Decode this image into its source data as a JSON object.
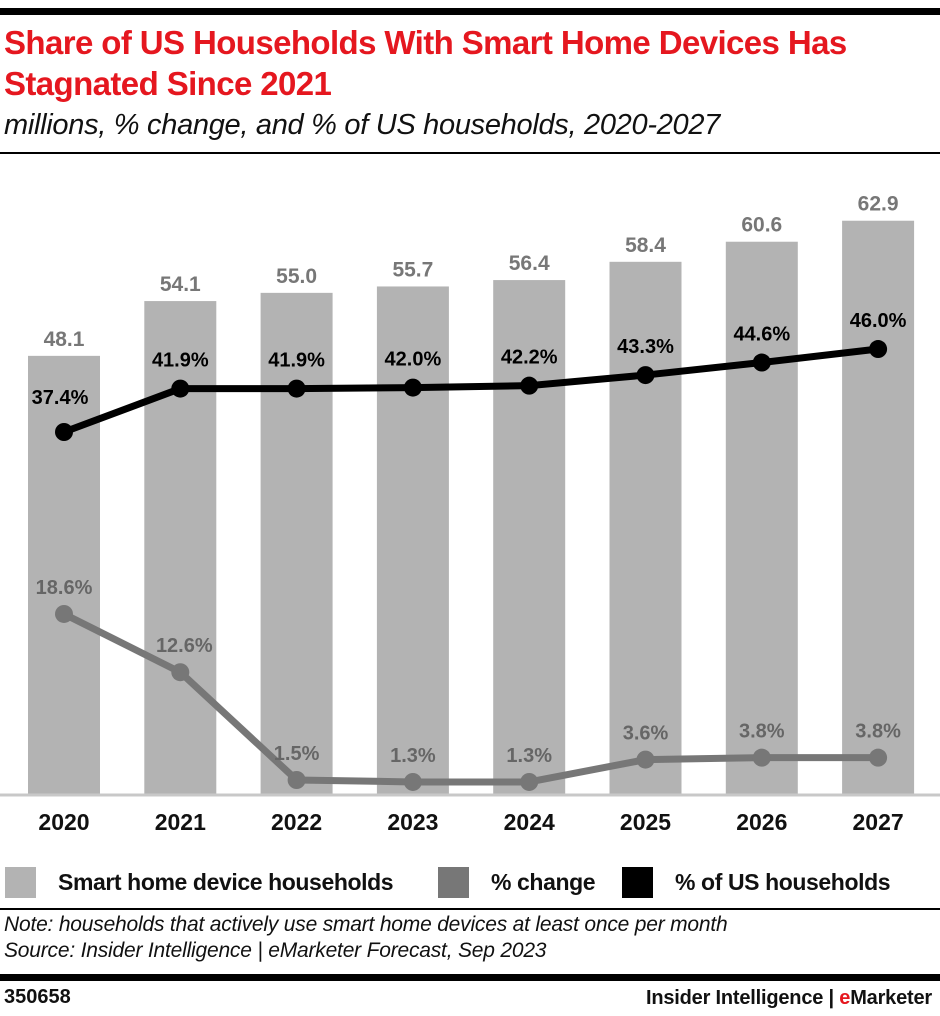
{
  "header": {
    "title": "Share of US Households With Smart Home Devices Has Stagnated Since 2021",
    "subtitle": "millions, % change, and % of US households, 2020-2027"
  },
  "chart_data": {
    "type": "bar",
    "title": "Share of US Households With Smart Home Devices Has Stagnated Since 2021",
    "subtitle": "millions, % change, and % of US households, 2020-2027",
    "xlabel": "",
    "ylabel": "",
    "grid": false,
    "legend_position": "bottom",
    "categories": [
      "2020",
      "2021",
      "2022",
      "2023",
      "2024",
      "2025",
      "2026",
      "2027"
    ],
    "series": [
      {
        "name": "Smart home device households",
        "type": "bar",
        "color": "#b3b3b3",
        "label_color": "#777777",
        "values": [
          48.1,
          54.1,
          55.0,
          55.7,
          56.4,
          58.4,
          60.6,
          62.9
        ],
        "labels": [
          "48.1",
          "54.1",
          "55.0",
          "55.7",
          "56.4",
          "58.4",
          "60.6",
          "62.9"
        ]
      },
      {
        "name": "% change",
        "type": "line",
        "color": "#777777",
        "label_color": "#666666",
        "values": [
          18.6,
          12.6,
          1.5,
          1.3,
          1.3,
          3.6,
          3.8,
          3.8
        ],
        "labels": [
          "18.6%",
          "12.6%",
          "1.5%",
          "1.3%",
          "1.3%",
          "3.6%",
          "3.8%",
          "3.8%"
        ]
      },
      {
        "name": "% of US households",
        "type": "line",
        "color": "#000000",
        "label_color": "#000000",
        "values": [
          37.4,
          41.9,
          41.9,
          42.0,
          42.2,
          43.3,
          44.6,
          46.0
        ],
        "labels": [
          "37.4%",
          "41.9%",
          "41.9%",
          "42.0%",
          "42.2%",
          "43.3%",
          "44.6%",
          "46.0%"
        ]
      }
    ]
  },
  "legend": [
    {
      "label": "Smart home device households",
      "color": "#b3b3b3"
    },
    {
      "label": "% change",
      "color": "#777777"
    },
    {
      "label": "% of US households",
      "color": "#000000"
    }
  ],
  "footer": {
    "note": "Note: households that actively use smart home devices at least once per month",
    "source": "Source: Insider Intelligence | eMarketer Forecast, Sep 2023",
    "chart_id": "350658",
    "brand_prefix": "Insider Intelligence | ",
    "brand_e": "e",
    "brand_suffix": "Marketer"
  },
  "colors": {
    "title_red": "#e5171f",
    "bar_gray": "#b3b3b3",
    "change_gray": "#777777",
    "share_black": "#000000",
    "baseline": "#c8c8c8"
  }
}
